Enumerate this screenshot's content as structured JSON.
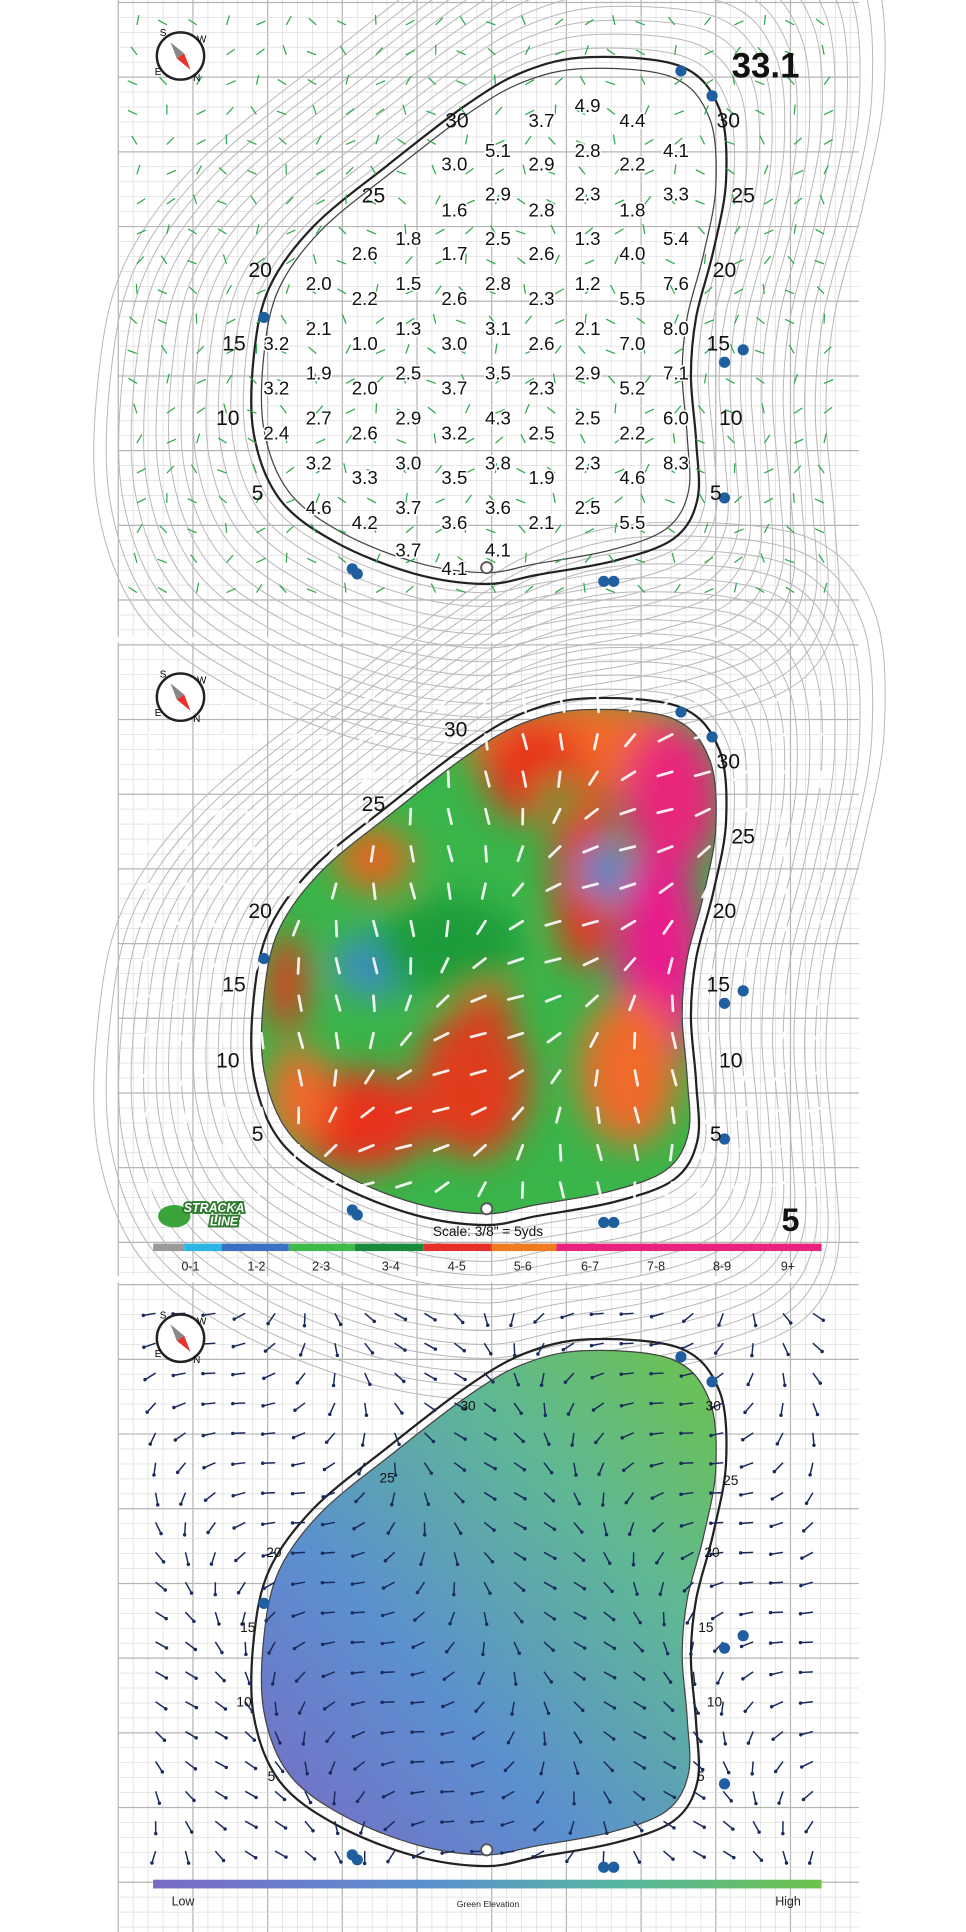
{
  "panels": [
    {
      "number": "33.1",
      "compass": {
        "s": "S",
        "w": "W",
        "e": "E",
        "n": "N"
      },
      "yardage_left": [
        "30",
        "25",
        "20",
        "15",
        "10",
        "5"
      ],
      "yardage_right": [
        "30",
        "25",
        "20",
        "15",
        "10",
        "5"
      ],
      "slopes": [
        "4.9",
        "3.7",
        "4.4",
        "5.1",
        "2.8",
        "4.1",
        "3.0",
        "2.9",
        "2.2",
        "2.9",
        "2.3",
        "3.3",
        "1.6",
        "2.8",
        "1.8",
        "1.8",
        "2.5",
        "1.3",
        "5.4",
        "2.6",
        "1.7",
        "2.6",
        "4.0",
        "2.0",
        "1.5",
        "2.8",
        "1.2",
        "7.6",
        "2.2",
        "2.6",
        "2.3",
        "5.5",
        "2.1",
        "1.3",
        "3.1",
        "2.1",
        "8.0",
        "3.2",
        "1.0",
        "3.0",
        "2.6",
        "7.0",
        "1.9",
        "2.5",
        "3.5",
        "2.9",
        "7.1",
        "3.2",
        "2.0",
        "3.7",
        "2.3",
        "5.2",
        "2.7",
        "2.9",
        "4.3",
        "2.5",
        "6.0",
        "2.4",
        "2.6",
        "3.2",
        "2.5",
        "2.2",
        "3.2",
        "3.0",
        "3.8",
        "2.3",
        "8.3",
        "3.3",
        "3.5",
        "1.9",
        "4.6",
        "4.6",
        "3.7",
        "3.6",
        "2.5",
        "4.2",
        "3.6",
        "2.1",
        "5.5",
        "3.7",
        "4.1",
        "4.1"
      ]
    },
    {
      "compass": {
        "s": "S",
        "w": "W",
        "e": "E",
        "n": "N"
      },
      "yardage_left": [
        "30",
        "25",
        "20",
        "15",
        "10",
        "5"
      ],
      "yardage_right": [
        "30",
        "25",
        "20",
        "15",
        "10",
        "5"
      ],
      "logo": [
        "STRACKA",
        "LINE"
      ],
      "scale": "Scale: 3/8\" = 5yds",
      "hole": "5",
      "legend": [
        "0-1",
        "1-2",
        "2-3",
        "3-4",
        "4-5",
        "5-6",
        "6-7",
        "7-8",
        "8-9",
        "9+"
      ]
    },
    {
      "compass": {
        "s": "S",
        "w": "W",
        "e": "E",
        "n": "N"
      },
      "yardage_left": [
        "30",
        "25",
        "20",
        "15",
        "10",
        "5"
      ],
      "yardage_right": [
        "30",
        "25",
        "20",
        "15",
        "10",
        "5"
      ],
      "legend": {
        "low": "Low",
        "title": "Green Elevation",
        "high": "High"
      }
    }
  ]
}
